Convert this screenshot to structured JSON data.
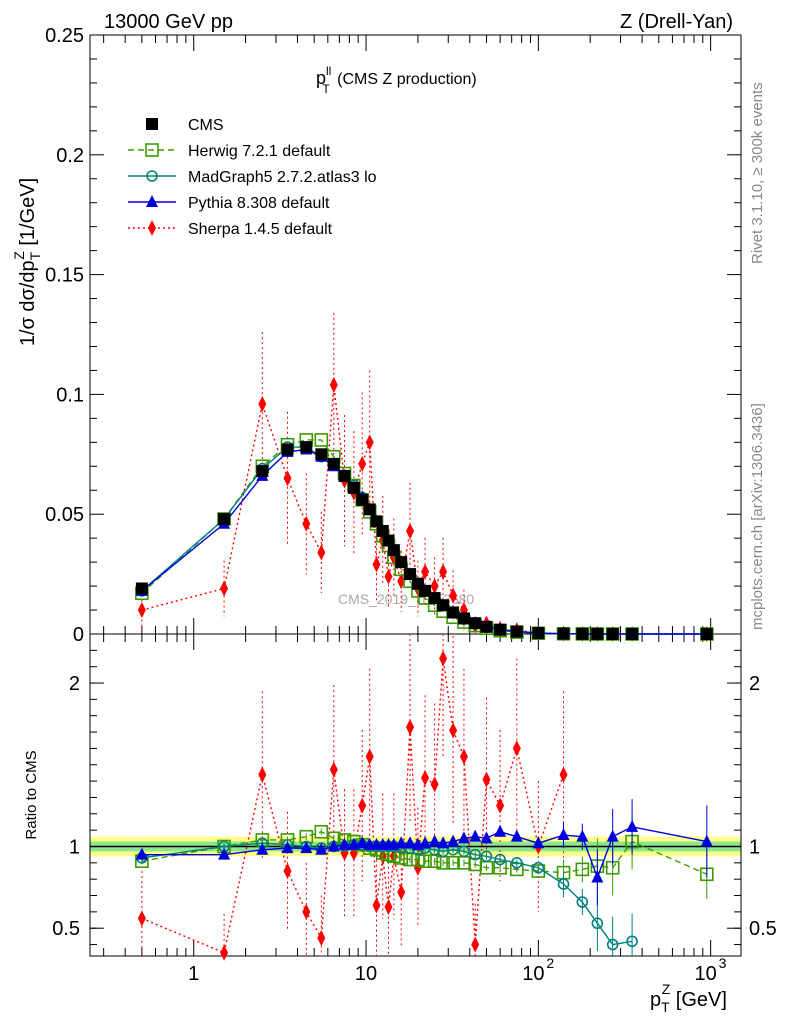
{
  "header": {
    "left": "13000 GeV pp",
    "right": "Z (Drell-Yan)"
  },
  "side_labels": {
    "rivet": "Rivet 3.1.10, ≥ 300k events",
    "mcplots": "mcplots.cern.ch [arXiv:1306.3436]"
  },
  "plot_title": {
    "main": "p",
    "sup": "ll",
    "sub": "T",
    "rest": " (CMS Z production)"
  },
  "watermark": "CMS_2019_I1753680",
  "colors": {
    "CMS": "#000000",
    "Herwig": "#3b9a00",
    "MadGraph": "#008080",
    "Pythia": "#0000dd",
    "Sherpa": "#ff0000",
    "band_outer": "#ffff8c",
    "band_inner": "#8ce68c"
  },
  "chart_data": [
    {
      "type": "line",
      "panel": "main",
      "title": "p_T^ll (CMS Z production)",
      "xlabel": "p_T^Z [GeV]",
      "ylabel": "1/σ dσ/dp_T^Z [1/GeV]",
      "xscale": "log",
      "xlim": [
        0.25,
        1500
      ],
      "ylim": [
        0,
        0.25
      ],
      "yticks": [
        "0",
        "0.05",
        "0.1",
        "0.15",
        "0.2",
        "0.25"
      ],
      "legend": "top-left",
      "x": [
        0.5,
        1.5,
        2.5,
        3.5,
        4.5,
        5.5,
        6.5,
        7.5,
        8.5,
        9.5,
        10.5,
        11.5,
        12.5,
        13.5,
        14.5,
        16,
        18,
        20,
        22,
        25,
        28,
        32,
        37,
        43,
        50,
        60,
        75,
        100,
        140,
        180,
        220,
        270,
        350,
        950
      ],
      "series": [
        {
          "name": "CMS",
          "values": [
            0.019,
            0.048,
            0.068,
            0.077,
            0.078,
            0.075,
            0.071,
            0.066,
            0.061,
            0.056,
            0.052,
            0.047,
            0.043,
            0.039,
            0.035,
            0.03,
            0.025,
            0.021,
            0.018,
            0.015,
            0.012,
            0.009,
            0.0065,
            0.0045,
            0.003,
            0.0018,
            0.001,
            0.0004,
            0.00012,
            6e-05,
            3e-05,
            1e-05,
            4e-06,
            3e-07
          ]
        },
        {
          "name": "Herwig 7.2.1 default",
          "values": [
            0.017,
            0.048,
            0.07,
            0.079,
            0.081,
            0.081,
            0.074,
            0.067,
            0.062,
            0.056,
            0.051,
            0.046,
            0.041,
            0.037,
            0.032,
            0.027,
            0.022,
            0.018,
            0.015,
            0.012,
            0.0095,
            0.007,
            0.005,
            0.0035,
            0.0024,
            0.0014,
            0.0008,
            0.0003,
            0.0001,
            5e-05,
            2e-05,
            8e-06,
            3e-06,
            2e-07
          ]
        },
        {
          "name": "MadGraph5 2.7.2.atlas3 lo",
          "values": [
            0.018,
            0.048,
            0.069,
            0.078,
            0.078,
            0.074,
            0.071,
            0.066,
            0.062,
            0.057,
            0.052,
            0.047,
            0.043,
            0.039,
            0.035,
            0.03,
            0.025,
            0.021,
            0.018,
            0.015,
            0.012,
            0.0088,
            0.0062,
            0.0042,
            0.0028,
            0.0016,
            0.0008,
            0.0003,
            9e-05,
            4e-05,
            1e-05,
            4e-06,
            1.5e-06,
            1e-07
          ]
        },
        {
          "name": "Pythia 8.308 default",
          "values": [
            0.018,
            0.046,
            0.066,
            0.076,
            0.077,
            0.074,
            0.07,
            0.066,
            0.061,
            0.057,
            0.052,
            0.047,
            0.043,
            0.039,
            0.035,
            0.03,
            0.025,
            0.021,
            0.018,
            0.015,
            0.012,
            0.0092,
            0.0067,
            0.0046,
            0.0031,
            0.0019,
            0.0011,
            0.0004,
            0.00013,
            6e-05,
            3e-05,
            1e-05,
            5e-06,
            3e-07
          ]
        },
        {
          "name": "Sherpa 1.4.5 default",
          "values": [
            0.01,
            0.019,
            0.096,
            0.065,
            0.046,
            0.034,
            0.104,
            0.064,
            0.059,
            0.071,
            0.08,
            0.029,
            0.039,
            0.024,
            0.032,
            0.022,
            0.043,
            0.019,
            0.026,
            0.02,
            0.026,
            0.016,
            0.01,
            0.0035,
            0.0044,
            0.0022,
            0.0016,
            0.0004,
            0.00017,
            0,
            0,
            0,
            0,
            0
          ]
        }
      ]
    },
    {
      "type": "line",
      "panel": "ratio",
      "xlabel": "p_T^Z [GeV]",
      "ylabel": "Ratio to CMS",
      "xscale": "log",
      "xlim": [
        0.25,
        1500
      ],
      "ylim": [
        0.33,
        2.3
      ],
      "yticks": [
        "0.5",
        "1",
        "2"
      ],
      "xticks": [
        "1",
        "10",
        "10^2",
        "10^3"
      ],
      "band": {
        "inner": [
          0.97,
          1.03
        ],
        "outer": [
          0.94,
          1.06
        ]
      },
      "x": [
        0.5,
        1.5,
        2.5,
        3.5,
        4.5,
        5.5,
        6.5,
        7.5,
        8.5,
        9.5,
        10.5,
        11.5,
        12.5,
        13.5,
        14.5,
        16,
        18,
        20,
        22,
        25,
        28,
        32,
        37,
        43,
        50,
        60,
        75,
        100,
        140,
        180,
        220,
        270,
        350,
        950
      ],
      "series": [
        {
          "name": "Herwig 7.2.1 default",
          "values": [
            0.91,
            1.0,
            1.04,
            1.04,
            1.06,
            1.09,
            1.05,
            1.04,
            1.03,
            1.01,
            0.99,
            0.98,
            0.96,
            0.95,
            0.94,
            0.93,
            0.92,
            0.92,
            0.91,
            0.91,
            0.9,
            0.9,
            0.9,
            0.89,
            0.87,
            0.87,
            0.86,
            0.85,
            0.84,
            0.86,
            0.88,
            0.87,
            1.03,
            0.83
          ]
        },
        {
          "name": "MadGraph5 2.7.2.atlas3 lo",
          "values": [
            0.93,
            1.0,
            1.02,
            1.01,
            1.0,
            0.99,
            1.0,
            1.0,
            1.01,
            1.01,
            1.0,
            1.0,
            1.0,
            1.0,
            1.0,
            0.99,
            0.99,
            0.98,
            0.99,
            0.98,
            0.97,
            0.98,
            0.97,
            0.95,
            0.94,
            0.92,
            0.9,
            0.87,
            0.77,
            0.66,
            0.53,
            0.4,
            0.42,
            null
          ]
        },
        {
          "name": "Pythia 8.308 default",
          "values": [
            0.95,
            0.95,
            0.98,
            0.99,
            0.99,
            0.98,
            1.0,
            1.01,
            1.01,
            1.02,
            1.01,
            1.01,
            1.01,
            1.01,
            1.01,
            1.02,
            1.02,
            1.01,
            1.02,
            1.03,
            1.02,
            1.03,
            1.05,
            1.06,
            1.05,
            1.09,
            1.06,
            1.02,
            1.07,
            1.06,
            0.81,
            1.06,
            1.12,
            1.03
          ]
        },
        {
          "name": "Sherpa 1.4.5 default",
          "values": [
            0.56,
            0.35,
            1.44,
            0.85,
            0.6,
            0.44,
            1.47,
            0.96,
            0.96,
            1.25,
            1.55,
            0.64,
            0.94,
            0.63,
            0.94,
            0.72,
            1.73,
            0.87,
            1.42,
            1.38,
            2.15,
            1.71,
            1.55,
            0.4,
            1.41,
            1.25,
            1.6,
            1.0,
            1.44,
            null,
            null,
            null,
            null,
            null
          ]
        }
      ]
    }
  ],
  "axes": {
    "x_label_main": "p",
    "x_label_sup": "Z",
    "x_label_sub": "T",
    "x_label_unit": " [GeV]",
    "y_label": "1/σ dσ/dp",
    "y_label_sup": "Z",
    "y_label_sub": "T",
    "y_label_unit": " [1/GeV]",
    "ratio_label": "Ratio to CMS"
  }
}
